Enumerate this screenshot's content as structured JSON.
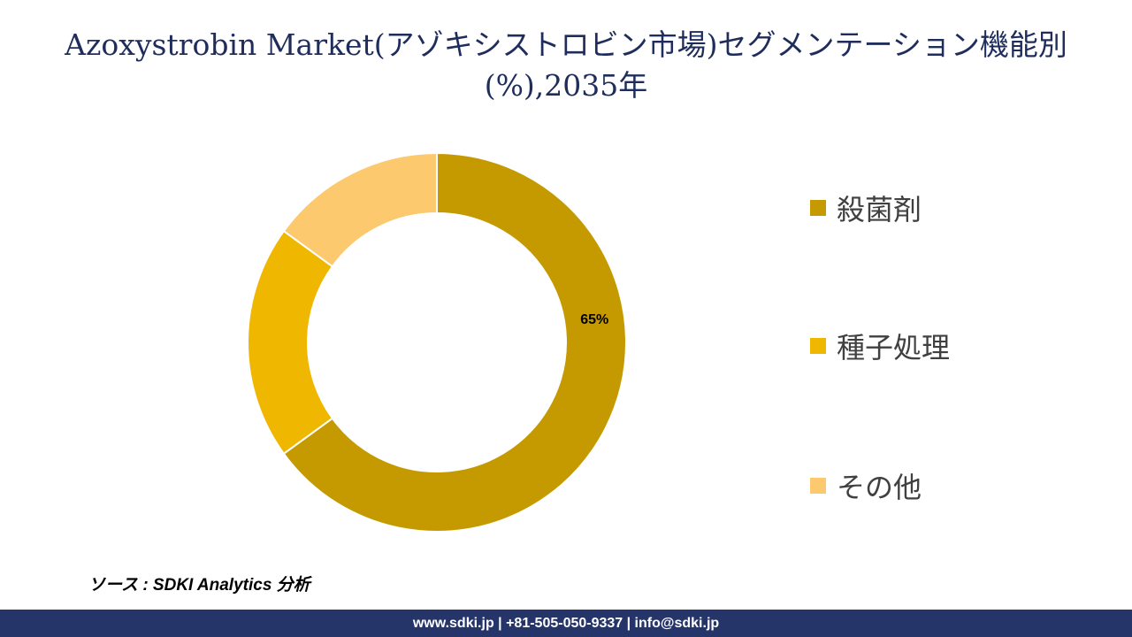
{
  "title": "Azoxystrobin Market(アゾキシストロビン市場)セグメンテーション機能別(%),2035年",
  "source": "ソース : SDKI Analytics 分析",
  "footer": "www.sdki.jp | +81-505-050-9337 | info@sdki.jp",
  "chart_data": {
    "type": "donut",
    "title": "Azoxystrobin Market(アゾキシストロビン市場)セグメンテーション機能別(%),2035年",
    "categories": [
      "殺菌剤",
      "種子処理",
      "その他"
    ],
    "values": [
      65,
      20,
      15
    ],
    "data_labels": [
      "65%",
      "",
      ""
    ],
    "colors": [
      "#C59A00",
      "#EFB700",
      "#FDC96F"
    ],
    "legend_position": "right"
  }
}
